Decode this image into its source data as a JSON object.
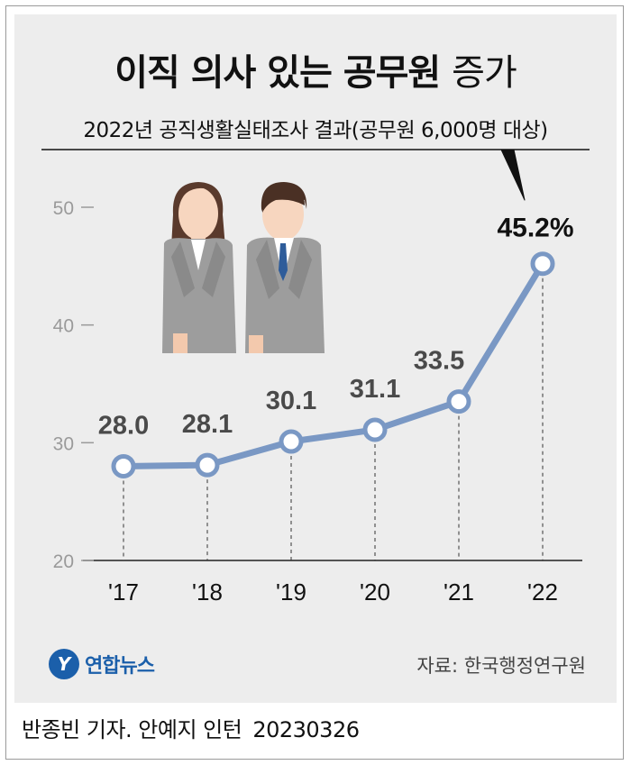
{
  "chart_data": {
    "type": "line",
    "title": "이직 의사 있는 공무원",
    "title_suffix": "증가",
    "subtitle": "2022년 공직생활실태조사 결과(공무원 6,000명 대상)",
    "categories": [
      "'17",
      "'18",
      "'19",
      "'20",
      "'21",
      "'22"
    ],
    "series": [
      {
        "values": [
          28.0,
          28.1,
          30.1,
          31.1,
          33.5,
          45.2
        ],
        "labels": [
          "28.0",
          "28.1",
          "30.1",
          "31.1",
          "33.5",
          "45.2%"
        ]
      }
    ],
    "ylim": [
      20,
      50
    ],
    "yticks": [
      20,
      30,
      40,
      50
    ],
    "grid": false,
    "line_color": "#7a98c4"
  },
  "footer": {
    "logo_text": "연합뉴스",
    "source": "자료: 한국행정연구원",
    "credit": "반종빈 기자. 안예지 인턴",
    "date": "20230326"
  }
}
